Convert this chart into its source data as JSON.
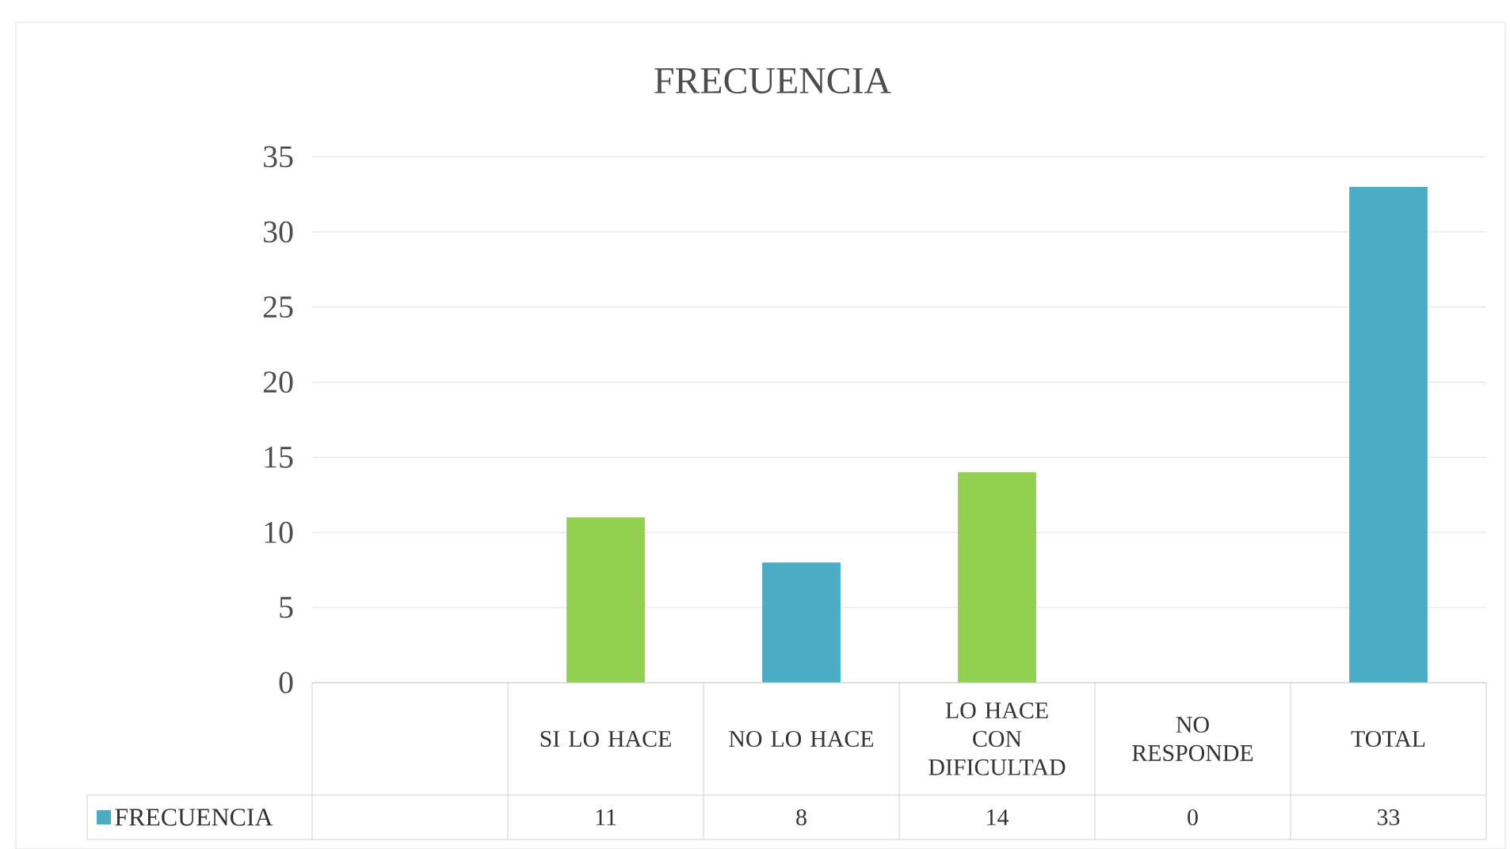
{
  "chart_data": {
    "type": "bar",
    "title": "FRECUENCIA",
    "categories": [
      null,
      "SI LO HACE",
      "NO LO HACE",
      "LO HACE CON DIFICULTAD",
      "NO RESPONDE",
      "TOTAL"
    ],
    "series": [
      {
        "name": "FRECUENCIA",
        "values": [
          null,
          11,
          8,
          14,
          0,
          33
        ]
      }
    ],
    "colors": [
      "#4bacc6",
      "#92d050",
      "#4bacc6",
      "#92d050",
      "#4bacc6",
      "#4bacc6"
    ],
    "ylim": [
      0,
      35
    ],
    "yticks": [
      0,
      5,
      10,
      15,
      20,
      25,
      30,
      35
    ],
    "grid": "y",
    "legend": "bottom left",
    "data_labels": true
  }
}
